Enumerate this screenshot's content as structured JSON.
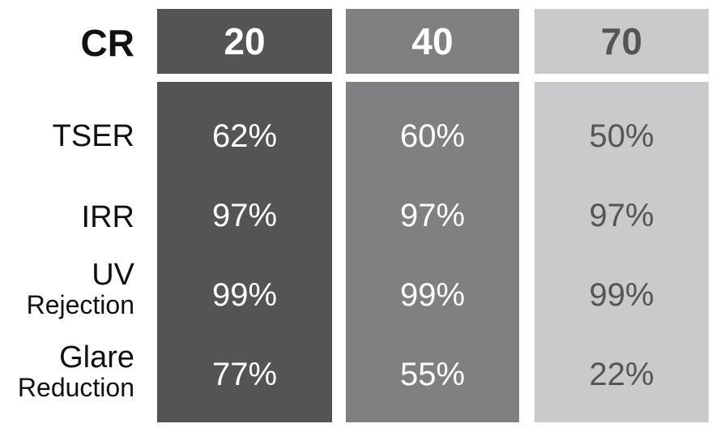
{
  "header_label": "CR",
  "row_labels": [
    {
      "line1": "TSER",
      "line2": ""
    },
    {
      "line1": "IRR",
      "line2": ""
    },
    {
      "line1": "UV",
      "line2": "Rejection"
    },
    {
      "line1": "Glare",
      "line2": "Reduction"
    }
  ],
  "columns": [
    {
      "cr": "20",
      "color": "#545456",
      "text_color": "#ffffff",
      "values": [
        "62%",
        "97%",
        "99%",
        "77%"
      ]
    },
    {
      "cr": "40",
      "color": "#808083",
      "text_color": "#ffffff",
      "values": [
        "60%",
        "97%",
        "99%",
        "55%"
      ]
    },
    {
      "cr": "70",
      "color": "#cacacc",
      "text_color": "#555555",
      "values": [
        "50%",
        "97%",
        "99%",
        "22%"
      ]
    }
  ]
}
